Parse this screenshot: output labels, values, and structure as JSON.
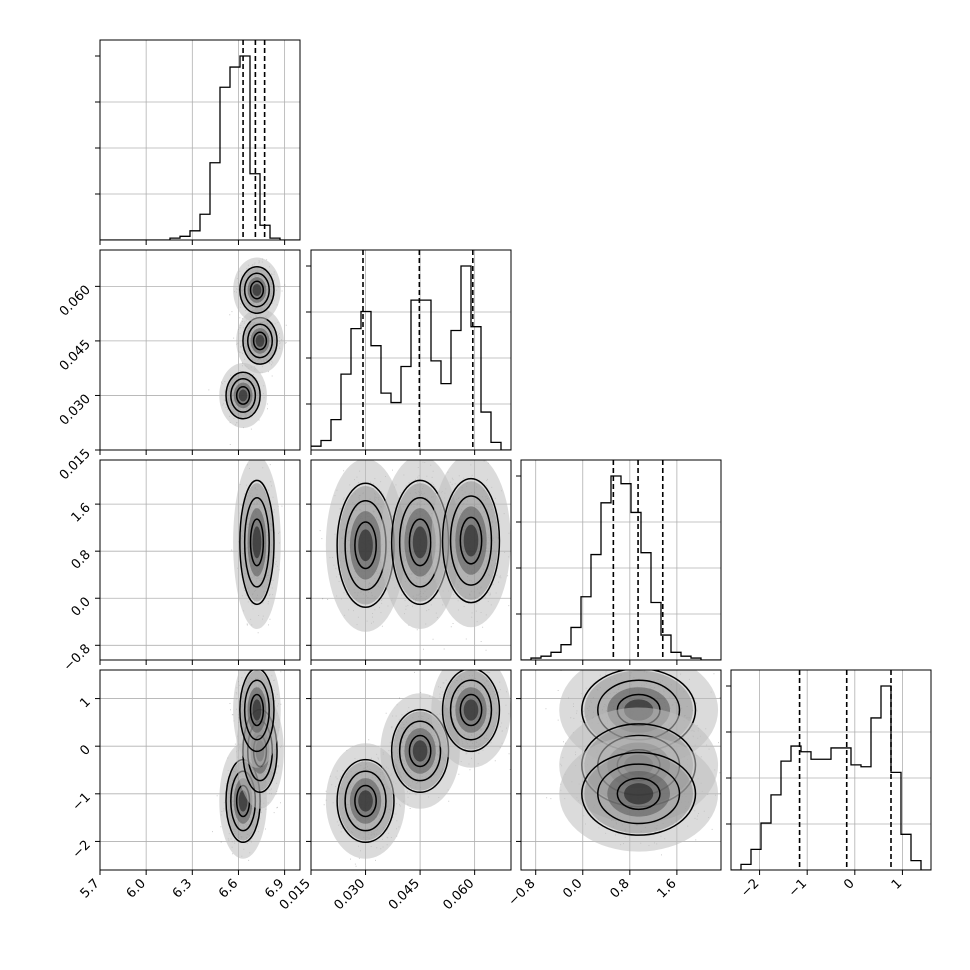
{
  "chart_data": {
    "type": "corner",
    "description_of_layout": "lower-triangular 4x4 grid: diagonal = 1D histograms with 16/50/84% dashed quantiles; off-diagonal = 2D scatter + density + contours",
    "grid_on": true,
    "parameters": [
      {
        "range": [
          5.7,
          7.0
        ],
        "ticks": [
          5.7,
          6.0,
          6.3,
          6.6,
          6.9
        ],
        "tick_labels": [
          "5.7",
          "6.0",
          "6.3",
          "6.6",
          "6.9"
        ],
        "quantiles": [
          6.63,
          6.71,
          6.77
        ],
        "hist": {
          "edges_start": 5.7,
          "bin_width": 0.065,
          "heights": [
            0,
            0,
            0,
            0,
            0,
            0,
            0,
            0.01,
            0.02,
            0.05,
            0.14,
            0.42,
            0.83,
            0.94,
            1.0,
            0.36,
            0.08,
            0.01,
            0,
            0
          ]
        }
      },
      {
        "range": [
          0.015,
          0.07
        ],
        "ticks": [
          0.015,
          0.03,
          0.045,
          0.06
        ],
        "tick_labels": [
          "0.015",
          "0.030",
          "0.045",
          "0.060"
        ],
        "quantiles": [
          0.0293,
          0.0448,
          0.0595
        ],
        "hist": {
          "edges_start": 0.015,
          "bin_width": 0.00275,
          "heights": [
            0.02,
            0.05,
            0.16,
            0.4,
            0.64,
            0.73,
            0.55,
            0.3,
            0.25,
            0.44,
            0.79,
            0.79,
            0.47,
            0.35,
            0.63,
            0.97,
            0.65,
            0.2,
            0.04,
            0
          ]
        }
      },
      {
        "range": [
          -1.05,
          2.35
        ],
        "ticks": [
          -0.8,
          0.0,
          0.8,
          1.6
        ],
        "tick_labels": [
          "−0.8",
          "0.0",
          "0.8",
          "1.6"
        ],
        "quantiles": [
          0.52,
          0.94,
          1.36
        ],
        "hist": {
          "edges_start": -1.05,
          "bin_width": 0.17,
          "heights": [
            0,
            0.01,
            0.02,
            0.04,
            0.08,
            0.17,
            0.33,
            0.55,
            0.82,
            0.96,
            0.92,
            0.77,
            0.56,
            0.3,
            0.13,
            0.04,
            0.02,
            0.01,
            0,
            0
          ]
        }
      },
      {
        "range": [
          -2.6,
          1.6
        ],
        "ticks": [
          -2,
          -1,
          0,
          1
        ],
        "tick_labels": [
          "−2",
          "−1",
          "0",
          "1"
        ],
        "quantiles": [
          -1.16,
          -0.17,
          0.76
        ],
        "hist": {
          "edges_start": -2.6,
          "bin_width": 0.21,
          "heights": [
            0,
            0.03,
            0.11,
            0.25,
            0.4,
            0.58,
            0.66,
            0.63,
            0.59,
            0.59,
            0.65,
            0.65,
            0.56,
            0.55,
            0.81,
            0.98,
            0.52,
            0.19,
            0.05,
            0
          ]
        }
      }
    ],
    "modes_2d": {
      "p1_p0": [
        [
          6.63,
          0.03
        ],
        [
          6.74,
          0.045
        ],
        [
          6.72,
          0.059
        ]
      ],
      "p2_p0": [
        [
          6.72,
          0.95
        ]
      ],
      "p2_p1": [
        [
          0.03,
          0.9
        ],
        [
          0.045,
          0.95
        ],
        [
          0.059,
          0.98
        ]
      ],
      "p3_p0": [
        [
          6.63,
          -1.15
        ],
        [
          6.74,
          -0.1
        ],
        [
          6.72,
          0.76
        ]
      ],
      "p3_p1": [
        [
          0.03,
          -1.15
        ],
        [
          0.045,
          -0.1
        ],
        [
          0.059,
          0.76
        ]
      ],
      "p3_p2": [
        [
          0.95,
          0.76
        ],
        [
          0.95,
          -0.4
        ],
        [
          0.95,
          -1.0
        ]
      ]
    }
  }
}
